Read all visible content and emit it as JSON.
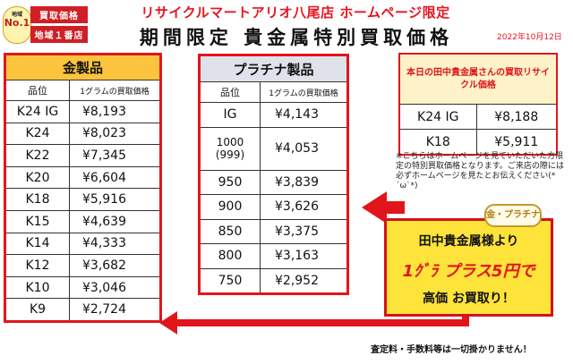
{
  "header": {
    "headline": "リサイクルマートアリオ八尾店 ホームページ限定",
    "subhead": "期間限定 貴金属特別買取価格",
    "date": "2022年10月12日"
  },
  "badge": {
    "small": "地域",
    "no1": "No.1",
    "line1": "買取価格",
    "line2": "地域１番店"
  },
  "gold": {
    "title": "金製品",
    "col_grade": "品位",
    "col_price": "1グラムの買取価格",
    "rows": [
      {
        "grade": "K24 IG",
        "price": "¥8,193"
      },
      {
        "grade": "K24",
        "price": "¥8,023"
      },
      {
        "grade": "K22",
        "price": "¥7,345"
      },
      {
        "grade": "K20",
        "price": "¥6,604"
      },
      {
        "grade": "K18",
        "price": "¥5,916"
      },
      {
        "grade": "K15",
        "price": "¥4,639"
      },
      {
        "grade": "K14",
        "price": "¥4,333"
      },
      {
        "grade": "K12",
        "price": "¥3,682"
      },
      {
        "grade": "K10",
        "price": "¥3,046"
      },
      {
        "grade": "K9",
        "price": "¥2,724"
      }
    ]
  },
  "platinum": {
    "title": "プラチナ製品",
    "col_grade": "品位",
    "col_price": "1グラムの買取価格",
    "rows": [
      {
        "grade": "IG",
        "price": "¥4,143"
      },
      {
        "grade": "1000\n(999)",
        "price": "¥4,053"
      },
      {
        "grade": "950",
        "price": "¥3,839"
      },
      {
        "grade": "900",
        "price": "¥3,626"
      },
      {
        "grade": "850",
        "price": "¥3,375"
      },
      {
        "grade": "800",
        "price": "¥3,163"
      },
      {
        "grade": "750",
        "price": "¥2,952"
      }
    ]
  },
  "today": {
    "title": "本日の田中貴金属さんの買取リサイクル価格",
    "rows": [
      {
        "grade": "K24 IG",
        "price": "¥8,188"
      },
      {
        "grade": "K18",
        "price": "¥5,911"
      }
    ]
  },
  "note": "※こちらはホームページを見ていただいた方限定の特別買取価格となります。ご来店の際には必ずホームページを見たとお伝えください(*´ω`*)",
  "promo": {
    "tag": "金・プラチナ",
    "line1": "田中貴金属様より",
    "line2": "1ｸﾞﾗ プラス5円で",
    "line3": "高価 お買取り！"
  },
  "footer": "査定料・手数料等は一切掛かりません！",
  "colors": {
    "accent_red": "#e1161c",
    "gold_header": "#fcc43c",
    "platinum_header": "#dfe2ea",
    "promo_yellow": "#fde33a"
  }
}
